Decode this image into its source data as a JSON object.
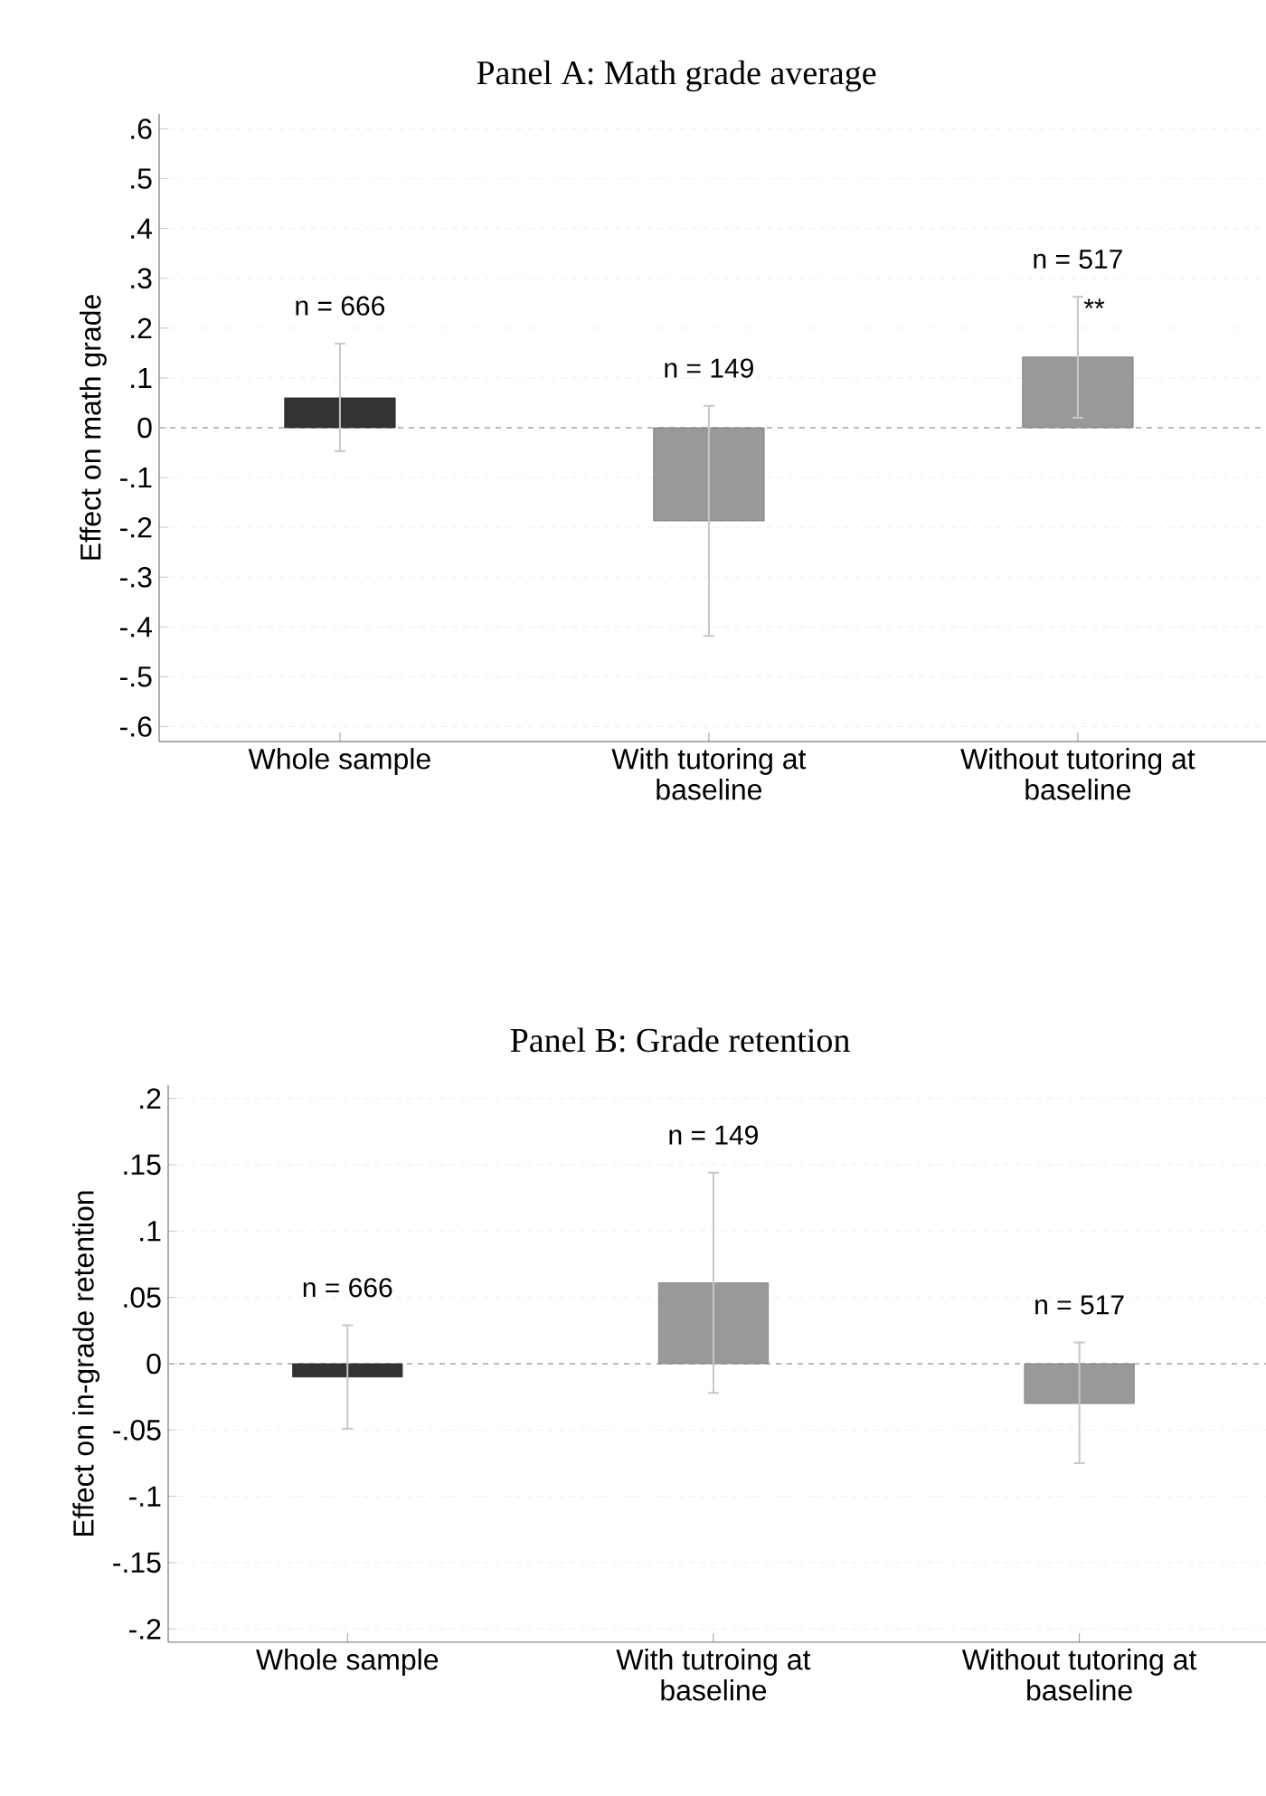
{
  "chart_data": [
    {
      "type": "bar",
      "title": "Panel A: Math grade average",
      "ylabel": "Effect on math grade",
      "categories": [
        "Whole sample",
        "With tutoring at baseline",
        "Without tutoring at baseline"
      ],
      "values": [
        0.06,
        -0.187,
        0.142
      ],
      "colors": [
        "#333333",
        "#999999",
        "#999999"
      ],
      "errors": [
        [
          -0.047,
          0.169
        ],
        [
          -0.418,
          0.044
        ],
        [
          0.02,
          0.263
        ]
      ],
      "ylim": [
        -0.63,
        0.63
      ],
      "yticks": [
        {
          "value": -0.6,
          "label": "-.6"
        },
        {
          "value": -0.5,
          "label": "-.5"
        },
        {
          "value": -0.4,
          "label": "-.4"
        },
        {
          "value": -0.3,
          "label": "-.3"
        },
        {
          "value": -0.2,
          "label": "-.2"
        },
        {
          "value": -0.1,
          "label": "-.1"
        },
        0,
        {
          "value": 0.1,
          "label": ".1"
        },
        {
          "value": 0.2,
          "label": ".2"
        },
        {
          "value": 0.3,
          "label": ".3"
        },
        {
          "value": 0.4,
          "label": ".4"
        },
        {
          "value": 0.5,
          "label": ".5"
        },
        {
          "value": 0.6,
          "label": ".6"
        }
      ],
      "grid": "y",
      "ref_lines": [
        {
          "axis": "y",
          "value": 0,
          "color": "#bbbbbb",
          "line_style": "dashed"
        }
      ],
      "annotations": [
        "n = 666",
        "n = 149",
        "n = 517",
        {
          "text": "**",
          "x": "Without tutoring at baseline",
          "y": 0.263
        }
      ]
    },
    {
      "type": "bar",
      "title": "Panel B: Grade retention",
      "ylabel": "Effect on in-grade retention",
      "categories": [
        "Whole sample",
        "With tutroing at baseline",
        "Without tutoring at baseline"
      ],
      "values": [
        -0.01,
        0.061,
        -0.03
      ],
      "colors": [
        "#333333",
        "#999999",
        "#999999"
      ],
      "errors": [
        [
          -0.049,
          0.029
        ],
        [
          -0.022,
          0.144
        ],
        [
          -0.075,
          0.016
        ]
      ],
      "ylim": [
        -0.21,
        0.21
      ],
      "yticks": [
        {
          "value": -0.2,
          "label": "-.2"
        },
        {
          "value": -0.15,
          "label": "-.15"
        },
        {
          "value": -0.1,
          "label": "-.1"
        },
        {
          "value": -0.05,
          "label": "-.05"
        },
        0,
        {
          "value": 0.05,
          "label": ".05"
        },
        {
          "value": 0.1,
          "label": ".1"
        },
        {
          "value": 0.15,
          "label": ".15"
        },
        {
          "value": 0.2,
          "label": ".2"
        }
      ],
      "grid": "y",
      "ref_lines": [
        {
          "axis": "y",
          "value": 0,
          "color": "#bbbbbb",
          "line_style": "dashed"
        }
      ],
      "annotations": [
        "n = 666",
        "n = 149",
        "n = 517"
      ]
    }
  ]
}
